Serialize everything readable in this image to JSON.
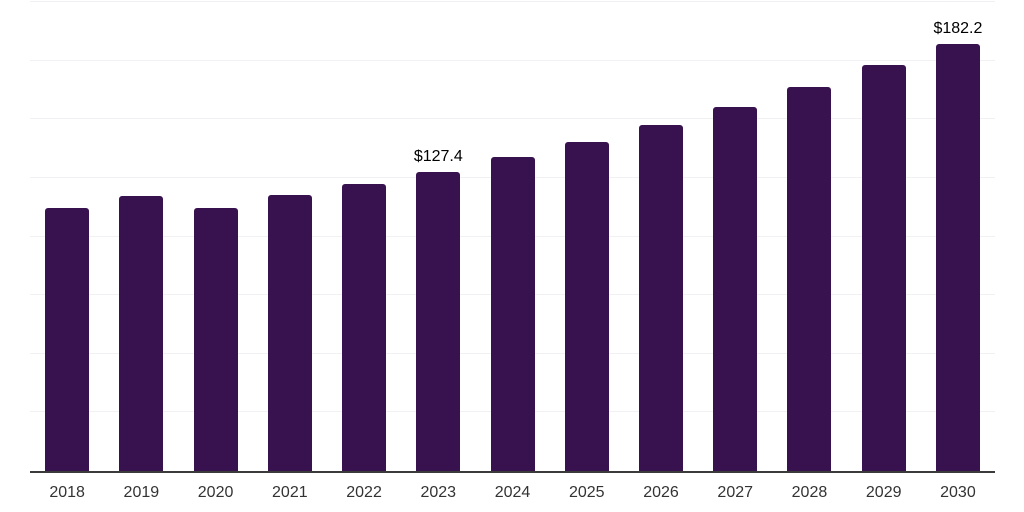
{
  "chart_data": {
    "type": "bar",
    "title": "",
    "xlabel": "",
    "ylabel": "",
    "categories": [
      "2018",
      "2019",
      "2020",
      "2021",
      "2022",
      "2023",
      "2024",
      "2025",
      "2026",
      "2027",
      "2028",
      "2029",
      "2030"
    ],
    "values": [
      112.0,
      117.2,
      112.2,
      117.9,
      122.2,
      127.4,
      133.7,
      140.2,
      147.5,
      155.3,
      163.7,
      173.0,
      182.2
    ],
    "value_labels": [
      null,
      null,
      null,
      null,
      null,
      "$127.4",
      null,
      null,
      null,
      null,
      null,
      null,
      "$182.2"
    ],
    "ylim": [
      0,
      200
    ],
    "gridline_step": 25,
    "grid": "horizontal-only",
    "y_tick_labels_shown": false,
    "legend": "none",
    "colors": {
      "bar": "#38124e",
      "axis_line": "#3b3b3b",
      "gridline": "#f1f1f3",
      "tick_label": "#333333",
      "value_label": "#000000",
      "background": "#ffffff"
    }
  }
}
